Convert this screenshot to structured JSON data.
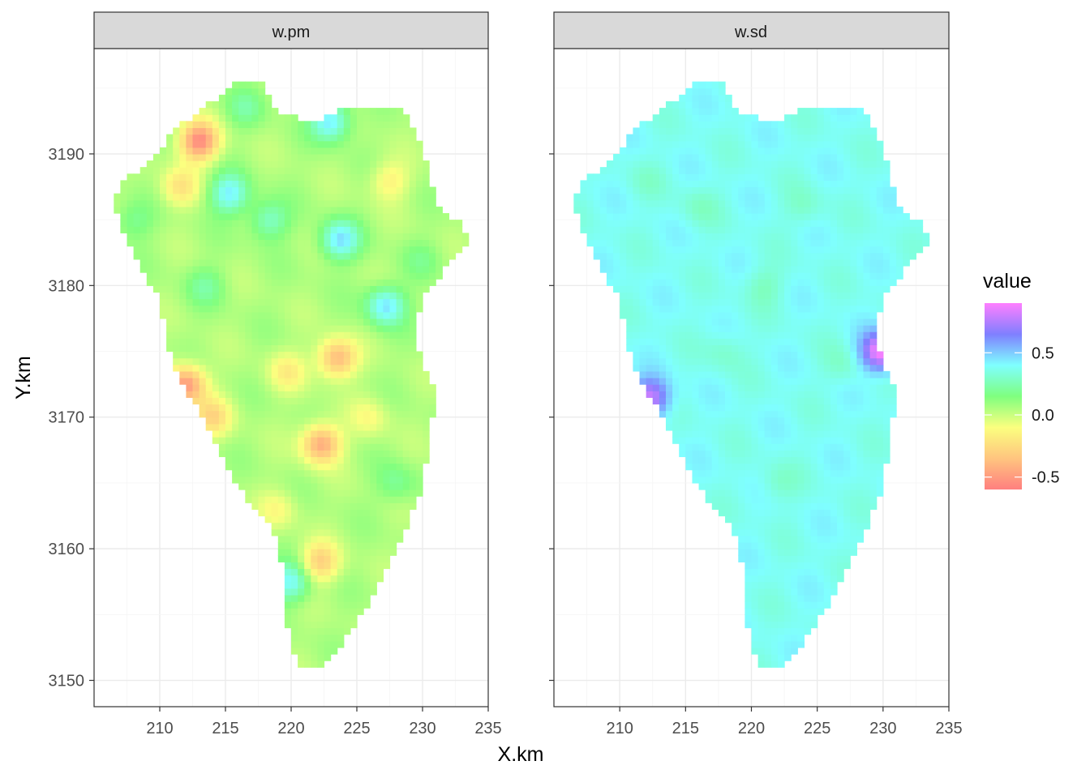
{
  "chart_data": {
    "type": "heatmap",
    "facet_labels": [
      "w.pm",
      "w.sd"
    ],
    "xlabel": "X.km",
    "ylabel": "Y.km",
    "xlim": [
      205,
      235
    ],
    "ylim": [
      3148,
      3198
    ],
    "x_ticks": [
      210,
      215,
      220,
      225,
      230,
      235
    ],
    "y_ticks": [
      3150,
      3160,
      3170,
      3180,
      3190
    ],
    "grid": true,
    "region_outline": [
      [
        220.8,
        3151
      ],
      [
        222.3,
        3151
      ],
      [
        224,
        3153
      ],
      [
        226,
        3156
      ],
      [
        228,
        3160
      ],
      [
        229.8,
        3164
      ],
      [
        230.6,
        3168
      ],
      [
        230.9,
        3172
      ],
      [
        229.4,
        3176
      ],
      [
        230,
        3179
      ],
      [
        231.5,
        3181
      ],
      [
        233.5,
        3183
      ],
      [
        233.2,
        3184.5
      ],
      [
        231.2,
        3186
      ],
      [
        230.5,
        3188.5
      ],
      [
        229.8,
        3191
      ],
      [
        228.5,
        3193.5
      ],
      [
        224,
        3193.5
      ],
      [
        222,
        3192.5
      ],
      [
        219,
        3193
      ],
      [
        217.8,
        3195.5
      ],
      [
        216,
        3195.5
      ],
      [
        214,
        3194
      ],
      [
        212,
        3192.5
      ],
      [
        210.5,
        3191
      ],
      [
        209,
        3189
      ],
      [
        207,
        3188
      ],
      [
        206.5,
        3186
      ],
      [
        207.2,
        3184
      ],
      [
        208.7,
        3181
      ],
      [
        210,
        3179
      ],
      [
        210.5,
        3176
      ],
      [
        211.5,
        3173
      ],
      [
        213,
        3170.5
      ],
      [
        214.6,
        3167
      ],
      [
        216.5,
        3164
      ],
      [
        218.5,
        3162
      ],
      [
        219.5,
        3158
      ],
      [
        219.7,
        3154
      ],
      [
        220.2,
        3152
      ]
    ],
    "series": [
      {
        "name": "w.pm",
        "base_value": 0.05,
        "features": [
          {
            "x": 213,
            "y": 3191,
            "value": -0.55
          },
          {
            "x": 211.5,
            "y": 3187.5,
            "value": -0.2
          },
          {
            "x": 215.3,
            "y": 3187,
            "value": 0.42
          },
          {
            "x": 218.3,
            "y": 3185,
            "value": 0.3
          },
          {
            "x": 223.7,
            "y": 3183.5,
            "value": 0.45
          },
          {
            "x": 227.2,
            "y": 3178.5,
            "value": 0.45
          },
          {
            "x": 223.5,
            "y": 3174.5,
            "value": -0.4
          },
          {
            "x": 222.3,
            "y": 3168,
            "value": -0.45
          },
          {
            "x": 220,
            "y": 3157.5,
            "value": 0.4
          },
          {
            "x": 222.2,
            "y": 3159,
            "value": -0.3
          },
          {
            "x": 212,
            "y": 3172.5,
            "value": -0.5
          },
          {
            "x": 214,
            "y": 3170,
            "value": -0.25
          },
          {
            "x": 228,
            "y": 3165,
            "value": 0.2
          },
          {
            "x": 208,
            "y": 3185,
            "value": 0.2
          },
          {
            "x": 223,
            "y": 3192.5,
            "value": 0.45
          },
          {
            "x": 216.5,
            "y": 3193.5,
            "value": 0.2
          },
          {
            "x": 227.5,
            "y": 3188,
            "value": -0.15
          },
          {
            "x": 219.7,
            "y": 3173.5,
            "value": -0.15
          },
          {
            "x": 226,
            "y": 3170,
            "value": -0.1
          },
          {
            "x": 219,
            "y": 3163,
            "value": -0.1
          },
          {
            "x": 230,
            "y": 3182,
            "value": 0.15
          },
          {
            "x": 213.5,
            "y": 3180,
            "value": 0.2
          }
        ]
      },
      {
        "name": "w.sd",
        "base_value": 0.38,
        "features": [
          {
            "x": 221,
            "y": 3180,
            "value": 0.28
          },
          {
            "x": 218,
            "y": 3175,
            "value": 0.3
          },
          {
            "x": 224,
            "y": 3186,
            "value": 0.3
          },
          {
            "x": 216,
            "y": 3186,
            "value": 0.3
          },
          {
            "x": 222,
            "y": 3165,
            "value": 0.3
          },
          {
            "x": 227,
            "y": 3174,
            "value": 0.3
          },
          {
            "x": 212,
            "y": 3188,
            "value": 0.33
          },
          {
            "x": 229.8,
            "y": 3175,
            "value": 0.9
          },
          {
            "x": 212.3,
            "y": 3171.5,
            "value": 0.8
          }
        ]
      }
    ],
    "legend": {
      "title": "value",
      "position": "right",
      "breaks": [
        0.5,
        0.0,
        -0.5
      ],
      "labels": [
        "0.5",
        "0.0",
        "-0.5"
      ],
      "limits": [
        -0.6,
        0.9
      ],
      "palette": [
        "#ff7f7f",
        "#ffc57f",
        "#fbff7f",
        "#7fff7f",
        "#7fffff",
        "#7f7fff",
        "#ff7fff"
      ]
    }
  }
}
